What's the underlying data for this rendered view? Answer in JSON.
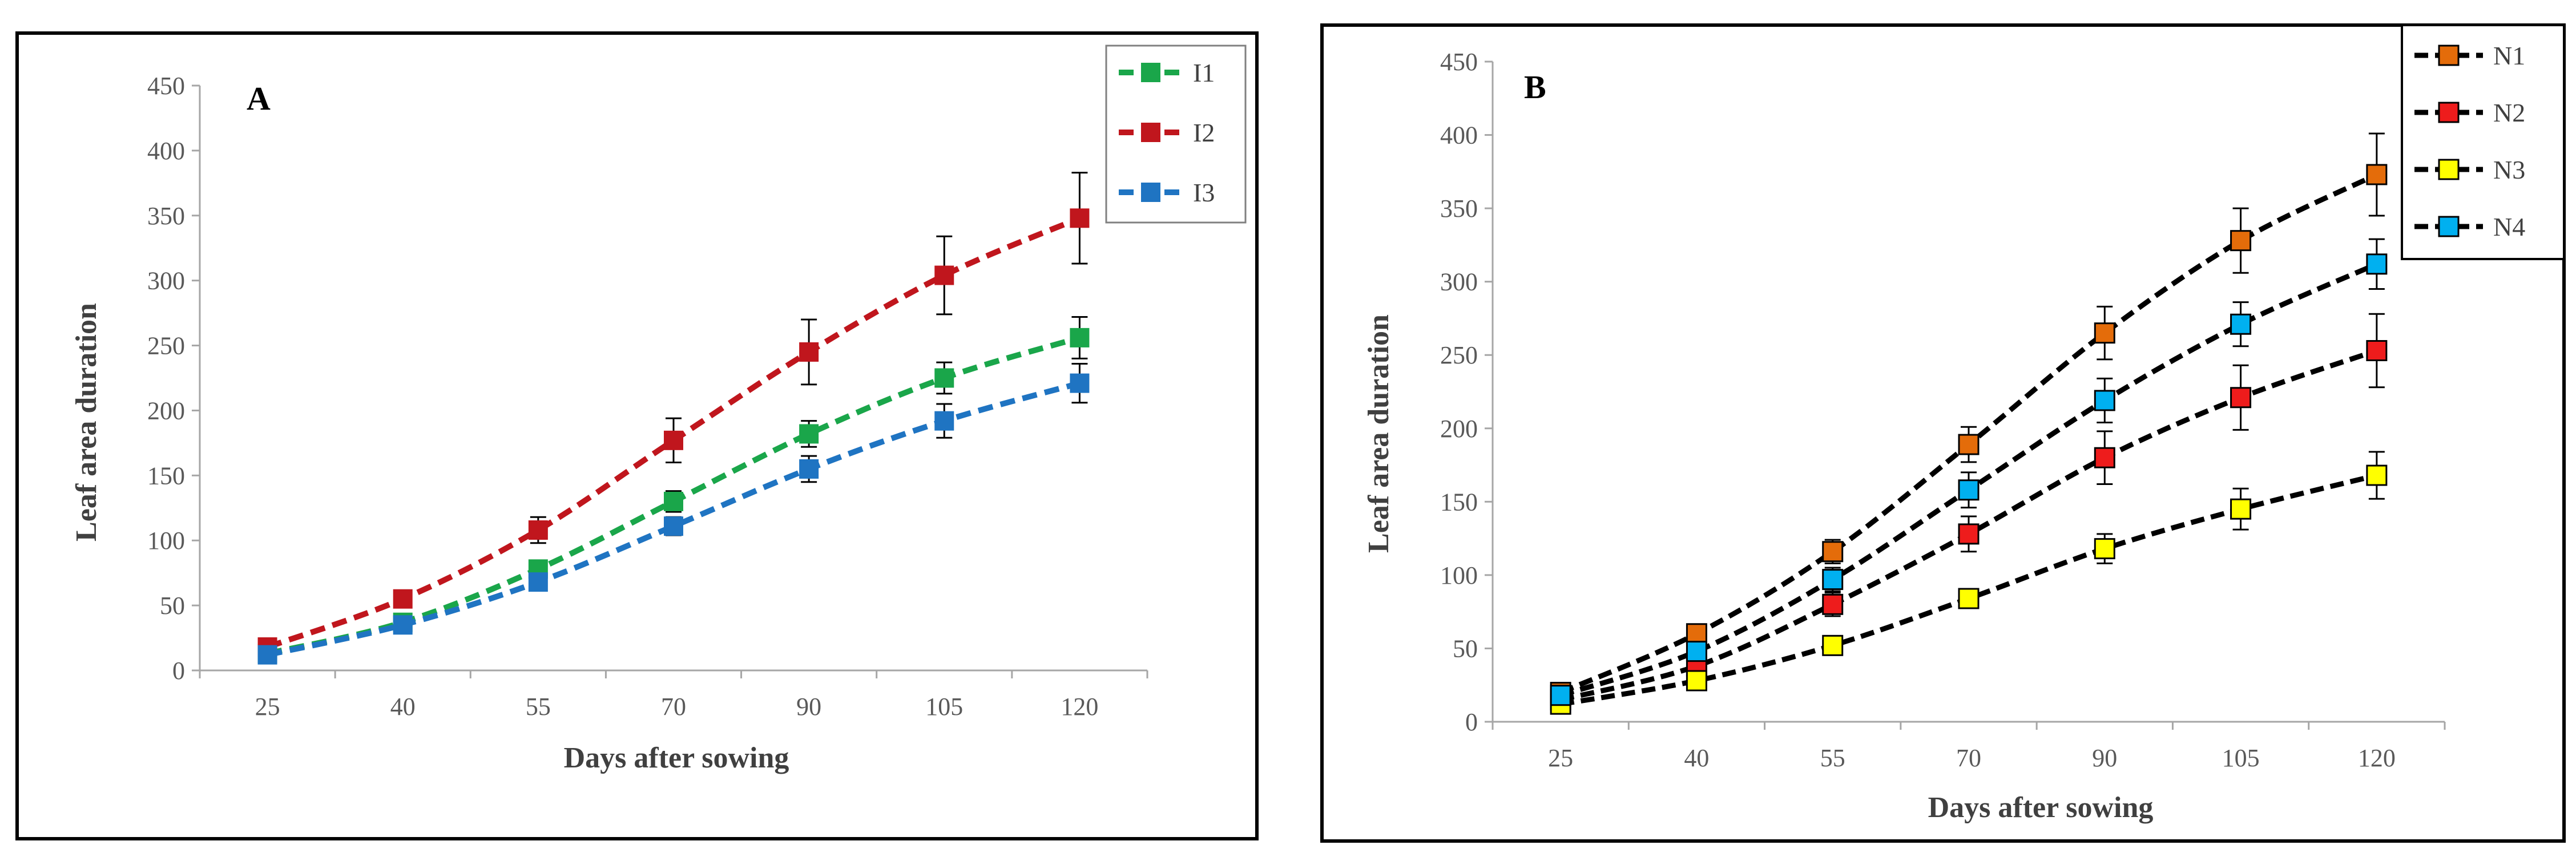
{
  "colors": {
    "frame": "#000000",
    "axis": "#a6a6a6",
    "text": "#404040"
  },
  "chart_data": [
    {
      "panel": "A",
      "type": "line",
      "xlabel": "Days after sowing",
      "ylabel": "Leaf area duration",
      "categories": [
        "25",
        "40",
        "55",
        "70",
        "90",
        "105",
        "120"
      ],
      "yticks": [
        "0",
        "50",
        "100",
        "150",
        "200",
        "250",
        "300",
        "350",
        "400",
        "450"
      ],
      "ylim": [
        0,
        450
      ],
      "legend_position": "top-right",
      "series": [
        {
          "name": "I1",
          "color": "#1aa64a",
          "marker": "#1aa64a",
          "line": "#1aa64a",
          "values": [
            13,
            37,
            78,
            130,
            182,
            225,
            256
          ],
          "errors": [
            3,
            4,
            6,
            8,
            10,
            12,
            16
          ]
        },
        {
          "name": "I2",
          "color": "#c0161d",
          "marker": "#c0161d",
          "line": "#c0161d",
          "values": [
            18,
            55,
            108,
            177,
            245,
            304,
            348
          ],
          "errors": [
            3,
            5,
            10,
            17,
            25,
            30,
            35
          ]
        },
        {
          "name": "I3",
          "color": "#1f74c2",
          "marker": "#1f74c2",
          "line": "#1f74c2",
          "values": [
            12,
            35,
            68,
            111,
            155,
            192,
            221
          ],
          "errors": [
            2,
            3,
            5,
            7,
            10,
            13,
            15
          ]
        }
      ]
    },
    {
      "panel": "B",
      "type": "line",
      "xlabel": "Days after sowing",
      "ylabel": "Leaf area duration",
      "categories": [
        "25",
        "40",
        "55",
        "70",
        "90",
        "105",
        "120"
      ],
      "yticks": [
        "0",
        "50",
        "100",
        "150",
        "200",
        "250",
        "300",
        "350",
        "400",
        "450"
      ],
      "ylim": [
        0,
        450
      ],
      "legend_position": "top-right",
      "series": [
        {
          "name": "N1",
          "color": "#000000",
          "marker": "#e46c0a",
          "line": "#000000",
          "values": [
            20,
            60,
            116,
            189,
            265,
            328,
            373
          ],
          "errors": [
            3,
            5,
            8,
            12,
            18,
            22,
            28
          ]
        },
        {
          "name": "N2",
          "color": "#000000",
          "marker": "#ee1c1c",
          "line": "#000000",
          "values": [
            15,
            38,
            80,
            128,
            180,
            221,
            253
          ],
          "errors": [
            3,
            5,
            8,
            12,
            18,
            22,
            25
          ]
        },
        {
          "name": "N3",
          "color": "#000000",
          "marker": "#ffff00",
          "line": "#000000",
          "values": [
            12,
            28,
            52,
            84,
            118,
            145,
            168
          ],
          "errors": [
            2,
            3,
            4,
            6,
            10,
            14,
            16
          ]
        },
        {
          "name": "N4",
          "color": "#000000",
          "marker": "#00b0f0",
          "line": "#000000",
          "values": [
            18,
            48,
            97,
            158,
            219,
            271,
            312
          ],
          "errors": [
            3,
            5,
            8,
            12,
            15,
            15,
            17
          ]
        }
      ]
    }
  ]
}
